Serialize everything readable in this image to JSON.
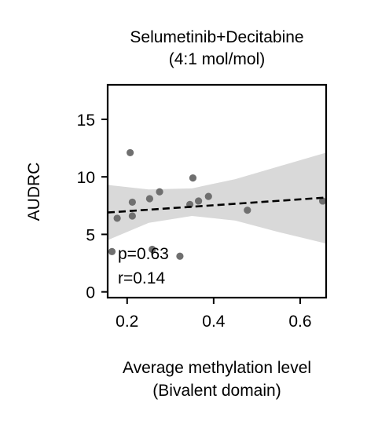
{
  "chart_data": {
    "type": "scatter",
    "title_line1": "Selumetinib+Decitabine",
    "title_line2": "(4:1 mol/mol)",
    "xlabel_line1": "Average methylation level",
    "xlabel_line2": "(Bivalent domain)",
    "ylabel": "AUDRC",
    "xlim": [
      0.155,
      0.66
    ],
    "ylim": [
      -0.5,
      18
    ],
    "xticks": [
      0.2,
      0.4,
      0.6
    ],
    "xtick_labels": [
      "0.2",
      "0.4",
      "0.6"
    ],
    "yticks": [
      0,
      5,
      10,
      15
    ],
    "ytick_labels": [
      "0",
      "5",
      "10",
      "15"
    ],
    "grid": false,
    "points": [
      {
        "x": 0.165,
        "y": 3.5
      },
      {
        "x": 0.177,
        "y": 6.4
      },
      {
        "x": 0.207,
        "y": 12.1
      },
      {
        "x": 0.212,
        "y": 7.8
      },
      {
        "x": 0.212,
        "y": 6.6
      },
      {
        "x": 0.258,
        "y": 3.7
      },
      {
        "x": 0.252,
        "y": 8.1
      },
      {
        "x": 0.275,
        "y": 8.7
      },
      {
        "x": 0.322,
        "y": 3.1
      },
      {
        "x": 0.345,
        "y": 7.6
      },
      {
        "x": 0.352,
        "y": 9.9
      },
      {
        "x": 0.365,
        "y": 7.9
      },
      {
        "x": 0.388,
        "y": 8.3
      },
      {
        "x": 0.478,
        "y": 7.1
      },
      {
        "x": 0.652,
        "y": 7.9
      }
    ],
    "regression": {
      "x": [
        0.155,
        0.66
      ],
      "y": [
        6.9,
        8.2
      ]
    },
    "confidence_band": {
      "x": [
        0.155,
        0.25,
        0.35,
        0.45,
        0.55,
        0.66
      ],
      "upper": [
        9.3,
        8.9,
        9.0,
        9.8,
        10.9,
        12.1
      ],
      "lower": [
        4.5,
        6.0,
        6.6,
        6.2,
        5.2,
        4.2
      ]
    },
    "annotations": [
      "p=0.63",
      "r=0.14"
    ]
  }
}
